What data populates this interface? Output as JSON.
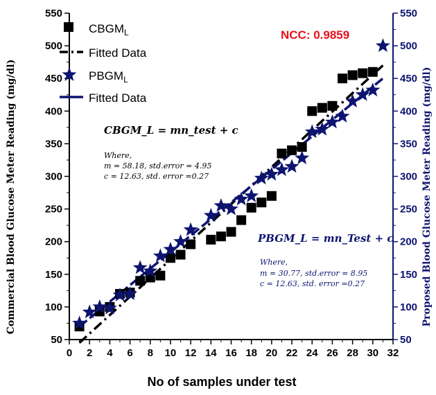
{
  "chart_data": {
    "type": "scatter",
    "xlabel": "No of samples under test",
    "ylabel_left": "Commercial Blood Glucose Meter Reading (mg/dl)",
    "ylabel_right": "Proposed Blood Glucose Meter Reading (mg/dl)",
    "xlim": [
      0,
      32
    ],
    "ylim": [
      50,
      550
    ],
    "xticks": [
      0,
      2,
      4,
      6,
      8,
      10,
      12,
      14,
      16,
      18,
      20,
      22,
      24,
      26,
      28,
      30,
      32
    ],
    "yticks": [
      50,
      100,
      150,
      200,
      250,
      300,
      350,
      400,
      450,
      500,
      550
    ],
    "colors": {
      "cbgm": "#000000",
      "pbgm": "#0d1470",
      "ncc": "#e8101a"
    },
    "legend": [
      {
        "label": "CBGM",
        "sub": "L"
      },
      {
        "label": "Fitted Data"
      },
      {
        "label": "PBGM",
        "sub": "L"
      },
      {
        "label": "Fitted Data"
      }
    ],
    "series": [
      {
        "name": "CBGM_L",
        "marker": "square",
        "x": [
          1,
          3,
          4,
          5,
          6,
          7,
          8,
          9,
          10,
          11,
          12,
          14,
          15,
          16,
          17,
          18,
          19,
          20,
          21,
          22,
          23,
          24,
          25,
          26,
          27,
          28,
          29,
          30
        ],
        "y": [
          70,
          93,
          100,
          120,
          122,
          140,
          145,
          148,
          175,
          180,
          196,
          203,
          208,
          215,
          233,
          252,
          260,
          270,
          335,
          340,
          345,
          400,
          405,
          408,
          450,
          455,
          458,
          460
        ]
      },
      {
        "name": "CBGM_L Fitted Data",
        "line": "dash-dot",
        "x": [
          1,
          31
        ],
        "y": [
          45,
          470
        ]
      },
      {
        "name": "PBGM_L",
        "marker": "star",
        "x": [
          1,
          2,
          3,
          4,
          5,
          6,
          7,
          8,
          9,
          10,
          11,
          12,
          14,
          15,
          16,
          17,
          18,
          19,
          20,
          21,
          22,
          23,
          24,
          25,
          26,
          27,
          28,
          29,
          30,
          31
        ],
        "y": [
          75,
          92,
          100,
          98,
          118,
          120,
          160,
          155,
          178,
          188,
          200,
          218,
          240,
          255,
          250,
          265,
          270,
          297,
          303,
          310,
          315,
          328,
          368,
          372,
          383,
          392,
          415,
          425,
          432,
          500
        ]
      },
      {
        "name": "PBGM_L Fitted Data",
        "line": "dashed",
        "x": [
          1,
          31
        ],
        "y": [
          70,
          450
        ]
      }
    ],
    "annotations": {
      "ncc": "NCC: 0.9859",
      "cbgm_eq": "CBGM_L = mn_test + c",
      "cbgm_where": "Where,",
      "cbgm_m": "m = 58.18, std.error = 4.95",
      "cbgm_c": "c = 12.63, std. error =0.27",
      "pbgm_eq": "PBGM_L = mn_Test + c",
      "pbgm_where": "Where,",
      "pbgm_m": "m = 30.77, std.error = 8.95",
      "pbgm_c": "c = 12.63, std. error =0.27"
    }
  }
}
